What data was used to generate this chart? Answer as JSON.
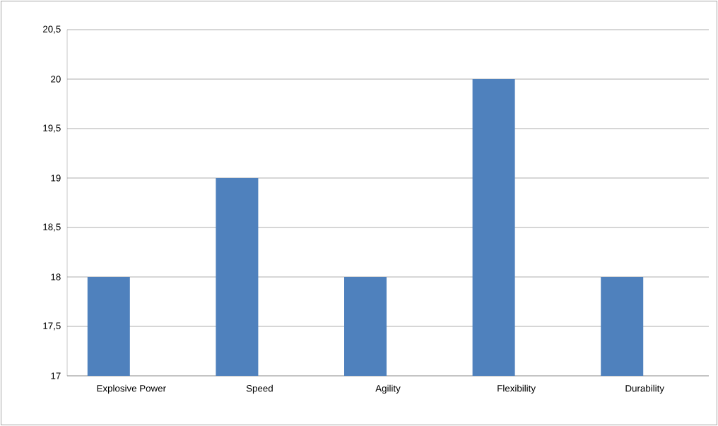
{
  "chart_data": {
    "type": "bar",
    "categories": [
      "Explosive Power",
      "Speed",
      "Agility",
      "Flexibility",
      "Durability"
    ],
    "values": [
      18,
      19,
      18,
      20,
      18
    ],
    "color": "#4f81bd",
    "ylim": [
      17,
      20.5
    ],
    "yticks": [
      17,
      {
        "value": 17.5,
        "label": "17,5"
      },
      18,
      {
        "value": 18.5,
        "label": "18,5"
      },
      19,
      {
        "value": 19.5,
        "label": "19,5"
      },
      20,
      {
        "value": 20.5,
        "label": "20,5"
      }
    ],
    "grid": "y"
  }
}
